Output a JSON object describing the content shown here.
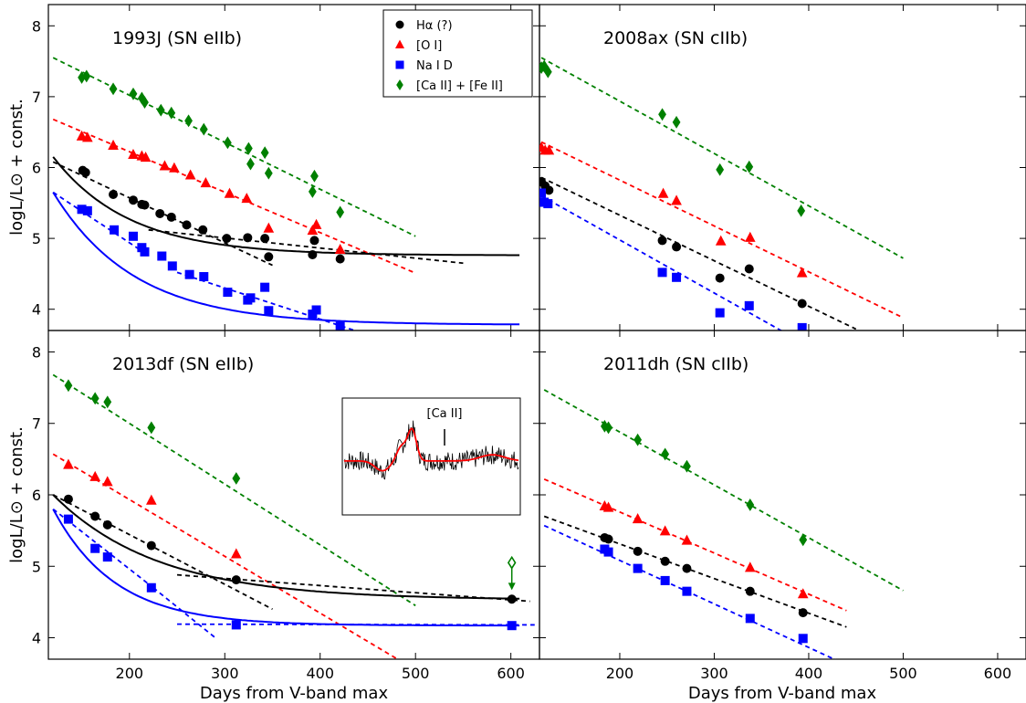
{
  "chart_data": {
    "type": "scatter",
    "xlabel": "Days from V-band max",
    "ylabel": "logL/L⊙ + const.",
    "xlim": [
      115,
      630
    ],
    "ylim": [
      3.7,
      8.3
    ],
    "xticks": [
      200,
      300,
      400,
      500,
      600
    ],
    "yticks": [
      4,
      5,
      6,
      7,
      8
    ],
    "legend": {
      "placement": "top-right of top-left panel",
      "entries": [
        {
          "key": "halpha",
          "label": "Hα (?)",
          "marker": "circle",
          "color": "#000000"
        },
        {
          "key": "oi",
          "label": "[O I]",
          "marker": "triangle",
          "color": "#ff0000"
        },
        {
          "key": "nai",
          "label": "Na I D",
          "marker": "square",
          "color": "#0000ff"
        },
        {
          "key": "caii",
          "label": "[Ca II] + [Fe II]",
          "marker": "diamond",
          "color": "#008000"
        }
      ]
    },
    "panels": [
      {
        "id": "sn1993j",
        "title": "1993J (SN eIIb)",
        "points": {
          "caii": [
            [
              150,
              7.27
            ],
            [
              155,
              7.29
            ],
            [
              183,
              7.11
            ],
            [
              204,
              7.04
            ],
            [
              213,
              6.98
            ],
            [
              216,
              6.92
            ],
            [
              233,
              6.81
            ],
            [
              244,
              6.77
            ],
            [
              262,
              6.66
            ],
            [
              278,
              6.54
            ],
            [
              303,
              6.35
            ],
            [
              325,
              6.27
            ],
            [
              327,
              6.05
            ],
            [
              342,
              6.21
            ],
            [
              346,
              5.92
            ],
            [
              392,
              5.66
            ],
            [
              394,
              5.88
            ],
            [
              421,
              5.37
            ]
          ],
          "oi": [
            [
              150,
              6.44
            ],
            [
              156,
              6.42
            ],
            [
              183,
              6.31
            ],
            [
              204,
              6.18
            ],
            [
              213,
              6.16
            ],
            [
              217,
              6.14
            ],
            [
              237,
              6.02
            ],
            [
              247,
              5.99
            ],
            [
              264,
              5.89
            ],
            [
              280,
              5.78
            ],
            [
              305,
              5.63
            ],
            [
              323,
              5.56
            ],
            [
              346,
              5.14
            ],
            [
              392,
              5.11
            ],
            [
              396,
              5.19
            ],
            [
              421,
              4.84
            ]
          ],
          "halpha": [
            [
              151,
              5.96
            ],
            [
              154,
              5.93
            ],
            [
              183,
              5.62
            ],
            [
              204,
              5.54
            ],
            [
              213,
              5.48
            ],
            [
              216,
              5.47
            ],
            [
              232,
              5.35
            ],
            [
              244,
              5.3
            ],
            [
              260,
              5.19
            ],
            [
              277,
              5.12
            ],
            [
              302,
              5.0
            ],
            [
              324,
              5.01
            ],
            [
              342,
              5.0
            ],
            [
              346,
              4.74
            ],
            [
              392,
              4.77
            ],
            [
              394,
              4.97
            ],
            [
              421,
              4.71
            ]
          ],
          "nai": [
            [
              150,
              5.41
            ],
            [
              156,
              5.39
            ],
            [
              184,
              5.12
            ],
            [
              204,
              5.03
            ],
            [
              213,
              4.87
            ],
            [
              216,
              4.81
            ],
            [
              234,
              4.75
            ],
            [
              245,
              4.61
            ],
            [
              263,
              4.49
            ],
            [
              278,
              4.46
            ],
            [
              303,
              4.24
            ],
            [
              324,
              4.13
            ],
            [
              327,
              4.16
            ],
            [
              342,
              4.31
            ],
            [
              346,
              3.98
            ],
            [
              392,
              3.93
            ],
            [
              396,
              3.99
            ],
            [
              421,
              3.76
            ]
          ]
        },
        "dashed_fits": {
          "caii": [
            [
              120,
              7.55
            ],
            [
              500,
              5.03
            ]
          ],
          "oi": [
            [
              120,
              6.68
            ],
            [
              500,
              4.51
            ]
          ],
          "halpha": [
            [
              [
                120,
                6.08
              ],
              [
                350,
                4.62
              ]
            ],
            [
              [
                220,
                5.12
              ],
              [
                550,
                4.65
              ]
            ]
          ],
          "nai": [
            [
              [
                120,
                5.65
              ],
              [
                220,
                4.76
              ]
            ],
            [
              [
                250,
                4.52
              ],
              [
                500,
                3.42
              ]
            ]
          ]
        },
        "model_curves": {
          "halpha": {
            "start": 120,
            "end": 610,
            "asymptote": 4.76,
            "amplitude": 1.39,
            "decay_days": 80
          },
          "nai": {
            "start": 120,
            "end": 610,
            "asymptote": 3.78,
            "amplitude": 1.87,
            "decay_days": 85
          }
        }
      },
      {
        "id": "sn2008ax",
        "title": "2008ax (SN cIIb)",
        "points": {
          "caii": [
            [
              117,
              7.41
            ],
            [
              120,
              7.43
            ],
            [
              124,
              7.35
            ],
            [
              245,
              6.75
            ],
            [
              260,
              6.64
            ],
            [
              306,
              5.97
            ],
            [
              337,
              6.01
            ],
            [
              392,
              5.39
            ]
          ],
          "oi": [
            [
              117,
              6.28
            ],
            [
              121,
              6.24
            ],
            [
              125,
              6.24
            ],
            [
              246,
              5.63
            ],
            [
              260,
              5.53
            ],
            [
              307,
              4.96
            ],
            [
              338,
              5.01
            ],
            [
              393,
              4.51
            ]
          ],
          "halpha": [
            [
              117,
              5.8
            ],
            [
              121,
              5.74
            ],
            [
              125,
              5.68
            ],
            [
              245,
              4.97
            ],
            [
              260,
              4.88
            ],
            [
              306,
              4.44
            ],
            [
              337,
              4.57
            ],
            [
              393,
              4.08
            ]
          ],
          "nai": [
            [
              117,
              5.64
            ],
            [
              120,
              5.51
            ],
            [
              124,
              5.49
            ],
            [
              245,
              4.52
            ],
            [
              260,
              4.45
            ],
            [
              306,
              3.95
            ],
            [
              337,
              4.05
            ],
            [
              393,
              3.74
            ]
          ]
        },
        "dashed_fits": {
          "caii": [
            [
              117,
              7.55
            ],
            [
              500,
              4.72
            ]
          ],
          "oi": [
            [
              117,
              6.36
            ],
            [
              500,
              3.88
            ]
          ],
          "halpha": [
            [
              117,
              5.86
            ],
            [
              450,
              3.72
            ]
          ],
          "nai": [
            [
              117,
              5.6
            ],
            [
              400,
              3.48
            ]
          ]
        }
      },
      {
        "id": "sn2013df",
        "title": "2013df (SN eIIb)",
        "points": {
          "caii": [
            [
              136,
              7.53
            ],
            [
              164,
              7.35
            ],
            [
              177,
              7.3
            ],
            [
              223,
              6.94
            ],
            [
              312,
              6.23
            ]
          ],
          "oi": [
            [
              136,
              6.42
            ],
            [
              164,
              6.25
            ],
            [
              177,
              6.18
            ],
            [
              223,
              5.92
            ],
            [
              312,
              5.17
            ]
          ],
          "halpha": [
            [
              136,
              5.94
            ],
            [
              164,
              5.7
            ],
            [
              177,
              5.58
            ],
            [
              223,
              5.29
            ],
            [
              312,
              4.81
            ],
            [
              601,
              4.54
            ]
          ],
          "nai": [
            [
              136,
              5.66
            ],
            [
              164,
              5.25
            ],
            [
              177,
              5.13
            ],
            [
              223,
              4.7
            ],
            [
              312,
              4.18
            ],
            [
              601,
              4.17
            ]
          ]
        },
        "upper_limit": {
          "series": "caii",
          "x": 601,
          "y": 5.05
        },
        "dashed_fits": {
          "caii": [
            [
              120,
              7.68
            ],
            [
              500,
              4.45
            ]
          ],
          "oi": [
            [
              120,
              6.57
            ],
            [
              500,
              3.55
            ]
          ],
          "halpha": [
            [
              [
                120,
                6.0
              ],
              [
                350,
                4.4
              ]
            ],
            [
              [
                250,
                4.88
              ],
              [
                620,
                4.51
              ]
            ]
          ],
          "nai": [
            [
              [
                120,
                5.8
              ],
              [
                225,
                4.7
              ]
            ],
            [
              [
                250,
                4.19
              ],
              [
                625,
                4.18
              ]
            ],
            [
              [
                225,
                4.7
              ],
              [
                290,
                4.0
              ]
            ]
          ]
        },
        "model_curves": {
          "halpha": {
            "start": 120,
            "end": 610,
            "asymptote": 4.53,
            "amplitude": 1.47,
            "decay_days": 110
          },
          "nai": {
            "start": 120,
            "end": 610,
            "asymptote": 4.17,
            "amplitude": 1.63,
            "decay_days": 65
          }
        },
        "inset": {
          "label": "[Ca II]"
        }
      },
      {
        "id": "sn2011dh",
        "title": "2011dh (SN cIIb)",
        "points": {
          "caii": [
            [
              184,
              6.96
            ],
            [
              188,
              6.94
            ],
            [
              219,
              6.77
            ],
            [
              248,
              6.57
            ],
            [
              271,
              6.4
            ],
            [
              338,
              5.86
            ],
            [
              394,
              5.37
            ]
          ],
          "oi": [
            [
              184,
              5.84
            ],
            [
              188,
              5.82
            ],
            [
              219,
              5.66
            ],
            [
              248,
              5.49
            ],
            [
              271,
              5.36
            ],
            [
              338,
              4.98
            ],
            [
              394,
              4.61
            ]
          ],
          "halpha": [
            [
              184,
              5.4
            ],
            [
              188,
              5.38
            ],
            [
              219,
              5.21
            ],
            [
              248,
              5.07
            ],
            [
              271,
              4.97
            ],
            [
              338,
              4.65
            ],
            [
              394,
              4.35
            ]
          ],
          "nai": [
            [
              184,
              5.24
            ],
            [
              188,
              5.2
            ],
            [
              219,
              4.97
            ],
            [
              248,
              4.8
            ],
            [
              271,
              4.65
            ],
            [
              338,
              4.27
            ],
            [
              394,
              3.99
            ]
          ]
        },
        "dashed_fits": {
          "caii": [
            [
              120,
              7.47
            ],
            [
              500,
              4.66
            ]
          ],
          "oi": [
            [
              120,
              6.22
            ],
            [
              440,
              4.38
            ]
          ],
          "halpha": [
            [
              120,
              5.7
            ],
            [
              440,
              4.15
            ]
          ],
          "nai": [
            [
              120,
              5.57
            ],
            [
              440,
              3.62
            ]
          ]
        }
      }
    ]
  }
}
